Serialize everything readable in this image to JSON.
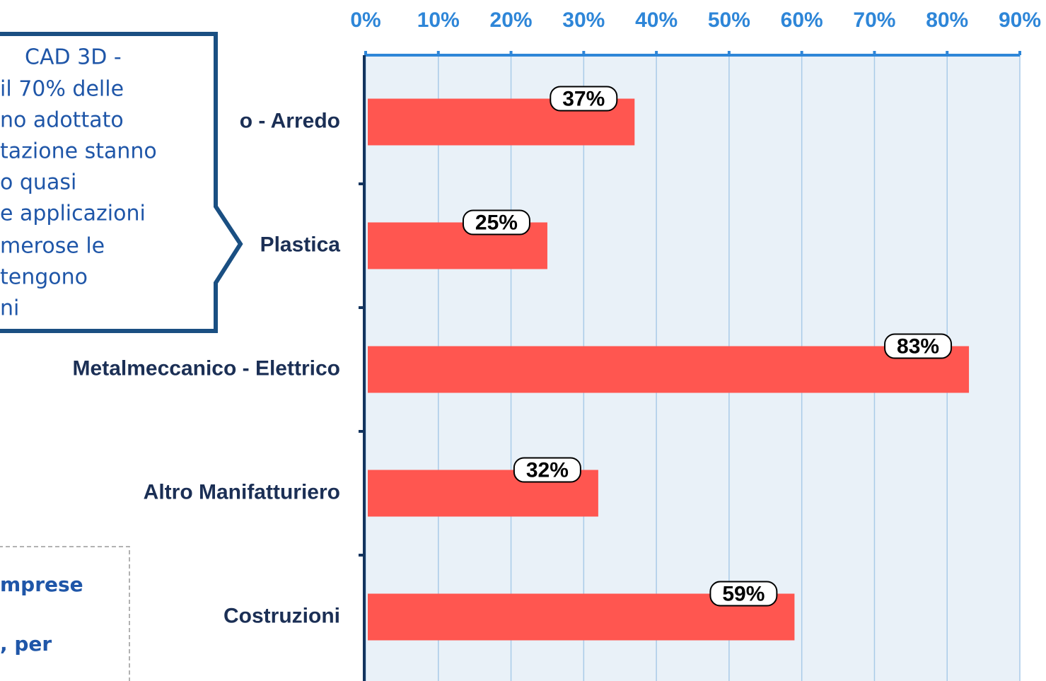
{
  "chart_data": {
    "type": "bar",
    "orientation": "horizontal",
    "categories": [
      "o - Arredo",
      "Plastica",
      "Metalmeccanico - Elettrico",
      "Altro Manifatturiero",
      "Costruzioni"
    ],
    "values": [
      37,
      25,
      83,
      32,
      59
    ],
    "value_labels": [
      "37%",
      "25%",
      "83%",
      "32%",
      "59%"
    ],
    "color": "#ff5650",
    "xlim": [
      0,
      90
    ],
    "xticks": [
      {
        "value": 0,
        "label": "0%"
      },
      {
        "value": 10,
        "label": "10%"
      },
      {
        "value": 20,
        "label": "20%"
      },
      {
        "value": 30,
        "label": "30%"
      },
      {
        "value": 40,
        "label": "40%"
      },
      {
        "value": 50,
        "label": "50%"
      },
      {
        "value": 60,
        "label": "60%"
      },
      {
        "value": 70,
        "label": "70%"
      },
      {
        "value": 80,
        "label": "80%"
      },
      {
        "value": 90,
        "label": "90%"
      }
    ],
    "grid": true
  },
  "callout": {
    "lines": [
      "CAD 3D -",
      "il 70% delle",
      "no adottato",
      "tazione stanno",
      "o quasi",
      "e applicazioni",
      "merose le",
      "tengono",
      "ni"
    ]
  },
  "note": {
    "lines": [
      "mprese",
      ", per"
    ]
  }
}
